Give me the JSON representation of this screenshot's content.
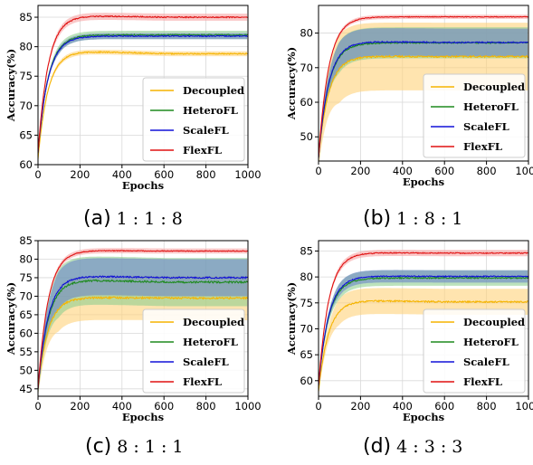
{
  "colors": {
    "Decoupled": "#f5b400",
    "HeteroFL": "#1e8a1e",
    "ScaleFL": "#1010d8",
    "FlexFL": "#e01010",
    "band_Decoupled": "#ffd27a",
    "band_HeteroFL": "#8fcf8f",
    "band_ScaleFL": "#6b86c8",
    "band_FlexFL": "#f6a3a3"
  },
  "captions": [
    {
      "tag": "(a)",
      "ratio": "1 : 1 : 8"
    },
    {
      "tag": "(b)",
      "ratio": "1 : 8 : 1"
    },
    {
      "tag": "(c)",
      "ratio": "8 : 1 : 1"
    },
    {
      "tag": "(d)",
      "ratio": "4 : 3 : 3"
    }
  ],
  "chart_data": [
    {
      "type": "line",
      "xlabel": "Epochs",
      "ylabel": "Accuracy(%)",
      "xlim": [
        0,
        1000
      ],
      "ylim": [
        60,
        87
      ],
      "xticks": [
        0,
        200,
        400,
        600,
        800,
        1000
      ],
      "yticks": [
        60,
        65,
        70,
        75,
        80,
        85
      ],
      "grid": true,
      "legend": "bottom-right",
      "series": [
        {
          "name": "Decoupled",
          "start": 61,
          "final": 78.8,
          "peak": 79.3,
          "band": 0.4
        },
        {
          "name": "HeteroFL",
          "start": 62,
          "final": 82.0,
          "peak": 82.0,
          "band": 0.7
        },
        {
          "name": "ScaleFL",
          "start": 62,
          "final": 81.8,
          "peak": 81.8,
          "band": 0.5
        },
        {
          "name": "FlexFL",
          "start": 62,
          "final": 85.0,
          "peak": 85.3,
          "band": 0.6
        }
      ]
    },
    {
      "type": "line",
      "xlabel": "Epochs",
      "ylabel": "Accuracy(%)",
      "xlim": [
        0,
        1000
      ],
      "ylim": [
        43,
        88
      ],
      "xticks": [
        0,
        200,
        400,
        600,
        800,
        1000
      ],
      "yticks": [
        50,
        60,
        70,
        80
      ],
      "grid": true,
      "legend": "bottom-right",
      "series": [
        {
          "name": "Decoupled",
          "start": 44,
          "final": 73.2,
          "peak": 73.3,
          "band": 9.8
        },
        {
          "name": "HeteroFL",
          "start": 44,
          "final": 77.2,
          "peak": 77.2,
          "band": 4.5
        },
        {
          "name": "ScaleFL",
          "start": 44,
          "final": 77.3,
          "peak": 77.6,
          "band": 4.0
        },
        {
          "name": "FlexFL",
          "start": 44,
          "final": 84.7,
          "peak": 84.7,
          "band": 0.6
        }
      ]
    },
    {
      "type": "line",
      "xlabel": "Epochs",
      "ylabel": "Accuracy(%)",
      "xlim": [
        0,
        1000
      ],
      "ylim": [
        43,
        85
      ],
      "xticks": [
        0,
        200,
        400,
        600,
        800,
        1000
      ],
      "yticks": [
        45,
        50,
        55,
        60,
        65,
        70,
        75,
        80,
        85
      ],
      "grid": true,
      "legend": "bottom-right",
      "series": [
        {
          "name": "Decoupled",
          "start": 45,
          "final": 69.5,
          "peak": 69.7,
          "band": 6.0
        },
        {
          "name": "HeteroFL",
          "start": 45,
          "final": 73.8,
          "peak": 74.5,
          "band": 6.5
        },
        {
          "name": "ScaleFL",
          "start": 45,
          "final": 75.0,
          "peak": 75.5,
          "band": 5.0
        },
        {
          "name": "FlexFL",
          "start": 45,
          "final": 82.2,
          "peak": 82.4,
          "band": 0.7
        }
      ]
    },
    {
      "type": "line",
      "xlabel": "Epochs",
      "ylabel": "Accuracy(%)",
      "xlim": [
        0,
        1000
      ],
      "ylim": [
        57,
        87
      ],
      "xticks": [
        0,
        200,
        400,
        600,
        800,
        1000
      ],
      "yticks": [
        60,
        65,
        70,
        75,
        80,
        85
      ],
      "grid": true,
      "legend": "bottom-right",
      "series": [
        {
          "name": "Decoupled",
          "start": 58,
          "final": 75.2,
          "peak": 75.5,
          "band": 2.5
        },
        {
          "name": "HeteroFL",
          "start": 59,
          "final": 79.8,
          "peak": 79.8,
          "band": 1.5
        },
        {
          "name": "ScaleFL",
          "start": 59,
          "final": 80.1,
          "peak": 80.2,
          "band": 1.2
        },
        {
          "name": "FlexFL",
          "start": 59,
          "final": 84.6,
          "peak": 84.7,
          "band": 0.6
        }
      ]
    }
  ]
}
